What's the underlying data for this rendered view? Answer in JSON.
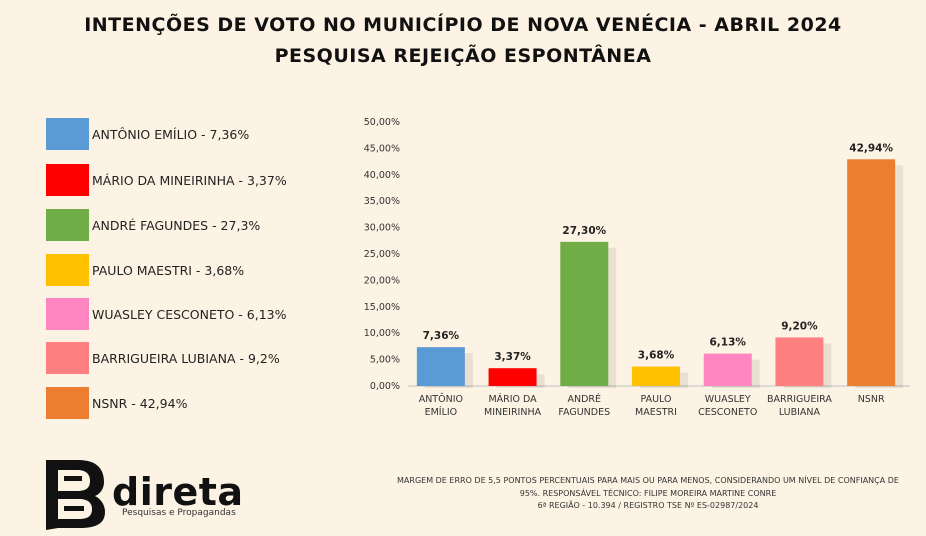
{
  "header": {
    "title": "INTENÇÕES DE VOTO NO MUNICÍPIO DE NOVA VENÉCIA - ABRIL 2024",
    "subtitle": "PESQUISA REJEIÇÃO ESPONTÂNEA"
  },
  "legend": [
    {
      "label": "ANTÔNIO EMÍLIO - 7,36%",
      "color": "#5b9bd5"
    },
    {
      "label": "MÁRIO DA MINEIRINHA - 3,37%",
      "color": "#ff0000"
    },
    {
      "label": "ANDRÉ FAGUNDES - 27,3%",
      "color": "#70ad47"
    },
    {
      "label": "PAULO MAESTRI - 3,68%",
      "color": "#ffc000"
    },
    {
      "label": "WUASLEY CESCONETO - 6,13%",
      "color": "#ff85c0"
    },
    {
      "label": "BARRIGUEIRA LUBIANA - 9,2%",
      "color": "#ff8080"
    },
    {
      "label": "NSNR - 42,94%",
      "color": "#ed7d31"
    }
  ],
  "chart_data": {
    "type": "bar",
    "categories": [
      [
        "ANTÔNIO",
        "EMÍLIO"
      ],
      [
        "MÁRIO DA",
        "MINEIRINHA"
      ],
      [
        "ANDRÉ",
        "FAGUNDES"
      ],
      [
        "PAULO",
        "MAESTRI"
      ],
      [
        "WUASLEY",
        "CESCONETO"
      ],
      [
        "BARRIGUEIRA",
        "LUBIANA"
      ],
      [
        "NSNR"
      ]
    ],
    "values": [
      7.36,
      3.37,
      27.3,
      3.68,
      6.13,
      9.2,
      42.94
    ],
    "data_labels": [
      "7,36%",
      "3,37%",
      "27,30%",
      "3,68%",
      "6,13%",
      "9,20%",
      "42,94%"
    ],
    "colors": [
      "#5b9bd5",
      "#ff0000",
      "#70ad47",
      "#ffc000",
      "#ff85c0",
      "#ff8080",
      "#ed7d31"
    ],
    "ylim": [
      0,
      50
    ],
    "yticks": [
      "0,00%",
      "5,00%",
      "10,00%",
      "15,00%",
      "20,00%",
      "25,00%",
      "30,00%",
      "35,00%",
      "40,00%",
      "45,00%",
      "50,00%"
    ],
    "grid": false,
    "xlabel": "",
    "ylabel": ""
  },
  "footer": {
    "line1": "MARGEM DE ERRO DE 5,5 PONTOS PERCENTUAIS PARA MAIS OU PARA MENOS, CONSIDERANDO UM NÍVEL DE CONFIANÇA DE",
    "line2": "95%. RESPONSÁVEL TÉCNICO: FILIPE MOREIRA MARTINE CONRE",
    "line3": "6ª REGIÃO - 10.394 / REGISTRO TSE Nº ES-02987/2024"
  },
  "logo": {
    "word": "direta",
    "tagline": "Pesquisas e Propagandas"
  }
}
